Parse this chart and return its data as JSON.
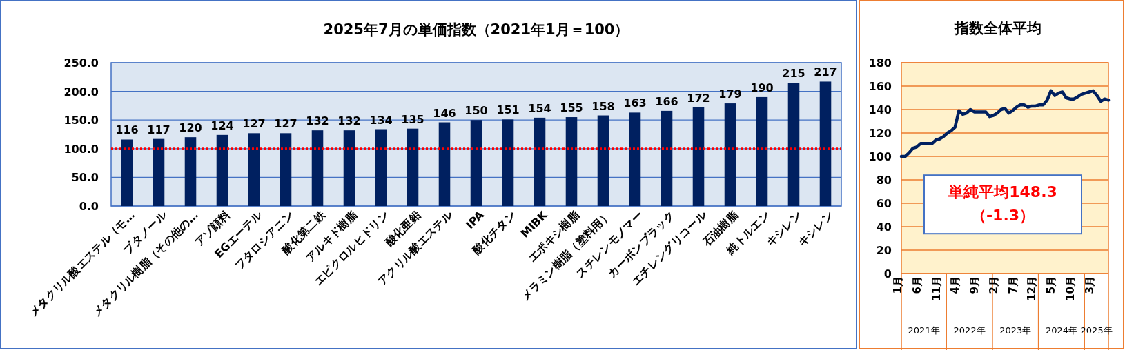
{
  "chart_data": [
    {
      "type": "bar",
      "title": "2025年7月の単価指数（2021年1月＝100）",
      "categories": [
        "メタクリル酸エステル（モ…",
        "ブタノール",
        "メタクリル樹脂（その他の…",
        "アゾ顔料",
        "EGエーテル",
        "フタロシアニン",
        "酸化第二鉄",
        "アルキド樹脂",
        "エピクロルヒドリン",
        "酸化亜鉛",
        "アクリル酸エステル",
        "IPA",
        "酸化チタン",
        "MIBK",
        "エポキシ樹脂",
        "メラミン樹脂（塗料用）",
        "スチレンモノマー",
        "カーボンブラック",
        "エチレングリコール",
        "石油樹脂",
        "純トルエン",
        "キシレン",
        "キシレン"
      ],
      "values": [
        116,
        117,
        120,
        124,
        127,
        127,
        132,
        132,
        134,
        135,
        146,
        150,
        151,
        154,
        155,
        158,
        163,
        166,
        172,
        179,
        190,
        215,
        217
      ],
      "color": "#002060",
      "data_labels": true,
      "ylim": [
        0,
        250
      ],
      "yticks": [
        {
          "value": 0,
          "label": "0.0"
        },
        {
          "value": 50,
          "label": "50.0"
        },
        {
          "value": 100,
          "label": "100.0"
        },
        {
          "value": 150,
          "label": "150.0"
        },
        {
          "value": 200,
          "label": "200.0"
        },
        {
          "value": 250,
          "label": "250.0"
        }
      ],
      "grid": "y",
      "ref_lines": [
        {
          "axis": "y",
          "value": 100,
          "color": "#ff0000",
          "line_style": "dotted"
        }
      ]
    },
    {
      "type": "line",
      "title": "指数全体平均",
      "x": [
        "2021-01",
        "2021-02",
        "2021-03",
        "2021-04",
        "2021-05",
        "2021-06",
        "2021-07",
        "2021-08",
        "2021-09",
        "2021-10",
        "2021-11",
        "2021-12",
        "2022-01",
        "2022-02",
        "2022-03",
        "2022-04",
        "2022-05",
        "2022-06",
        "2022-07",
        "2022-08",
        "2022-09",
        "2022-10",
        "2022-11",
        "2022-12",
        "2023-01",
        "2023-02",
        "2023-03",
        "2023-04",
        "2023-05",
        "2023-06",
        "2023-07",
        "2023-08",
        "2023-09",
        "2023-10",
        "2023-11",
        "2023-12",
        "2024-01",
        "2024-02",
        "2024-03",
        "2024-04",
        "2024-05",
        "2024-06",
        "2024-07",
        "2024-08",
        "2024-09",
        "2024-10",
        "2024-11",
        "2024-12",
        "2025-01",
        "2025-02",
        "2025-03",
        "2025-04",
        "2025-05",
        "2025-06",
        "2025-07"
      ],
      "values": [
        100,
        100,
        103,
        107,
        108,
        111,
        111,
        111,
        111,
        114,
        115,
        117,
        120,
        122,
        125,
        139,
        136,
        137,
        140,
        138,
        138,
        138,
        138,
        134,
        135,
        137,
        140,
        141,
        137,
        139,
        142,
        144,
        144,
        142,
        143,
        143,
        144,
        144,
        148,
        156,
        152,
        154,
        155,
        150,
        149,
        149,
        151,
        153,
        154,
        155,
        156,
        152,
        147,
        149,
        148
      ],
      "color": "#002060",
      "marker": "none",
      "line_style": "solid",
      "xlim": [
        "2021-01",
        "2025-07"
      ],
      "xticks": [
        {
          "value": "2021-01",
          "label": "1月"
        },
        {
          "value": "2021-06",
          "label": "6月"
        },
        {
          "value": "2021-11",
          "label": "11月"
        },
        {
          "value": "2022-04",
          "label": "4月"
        },
        {
          "value": "2022-09",
          "label": "9月"
        },
        {
          "value": "2023-02",
          "label": "2月"
        },
        {
          "value": "2023-07",
          "label": "7月"
        },
        {
          "value": "2023-12",
          "label": "12月"
        },
        {
          "value": "2024-05",
          "label": "5月"
        },
        {
          "value": "2024-10",
          "label": "10月"
        },
        {
          "value": "2025-03",
          "label": "3月"
        }
      ],
      "ylim": [
        0,
        180
      ],
      "yticks": [
        0,
        20,
        40,
        60,
        80,
        100,
        120,
        140,
        160,
        180
      ],
      "grid": "y",
      "annotations": [
        "2021年",
        "2022年",
        "2023年",
        "2024年",
        "2025年",
        "単純平均148.3\n（-1.3）"
      ]
    }
  ]
}
